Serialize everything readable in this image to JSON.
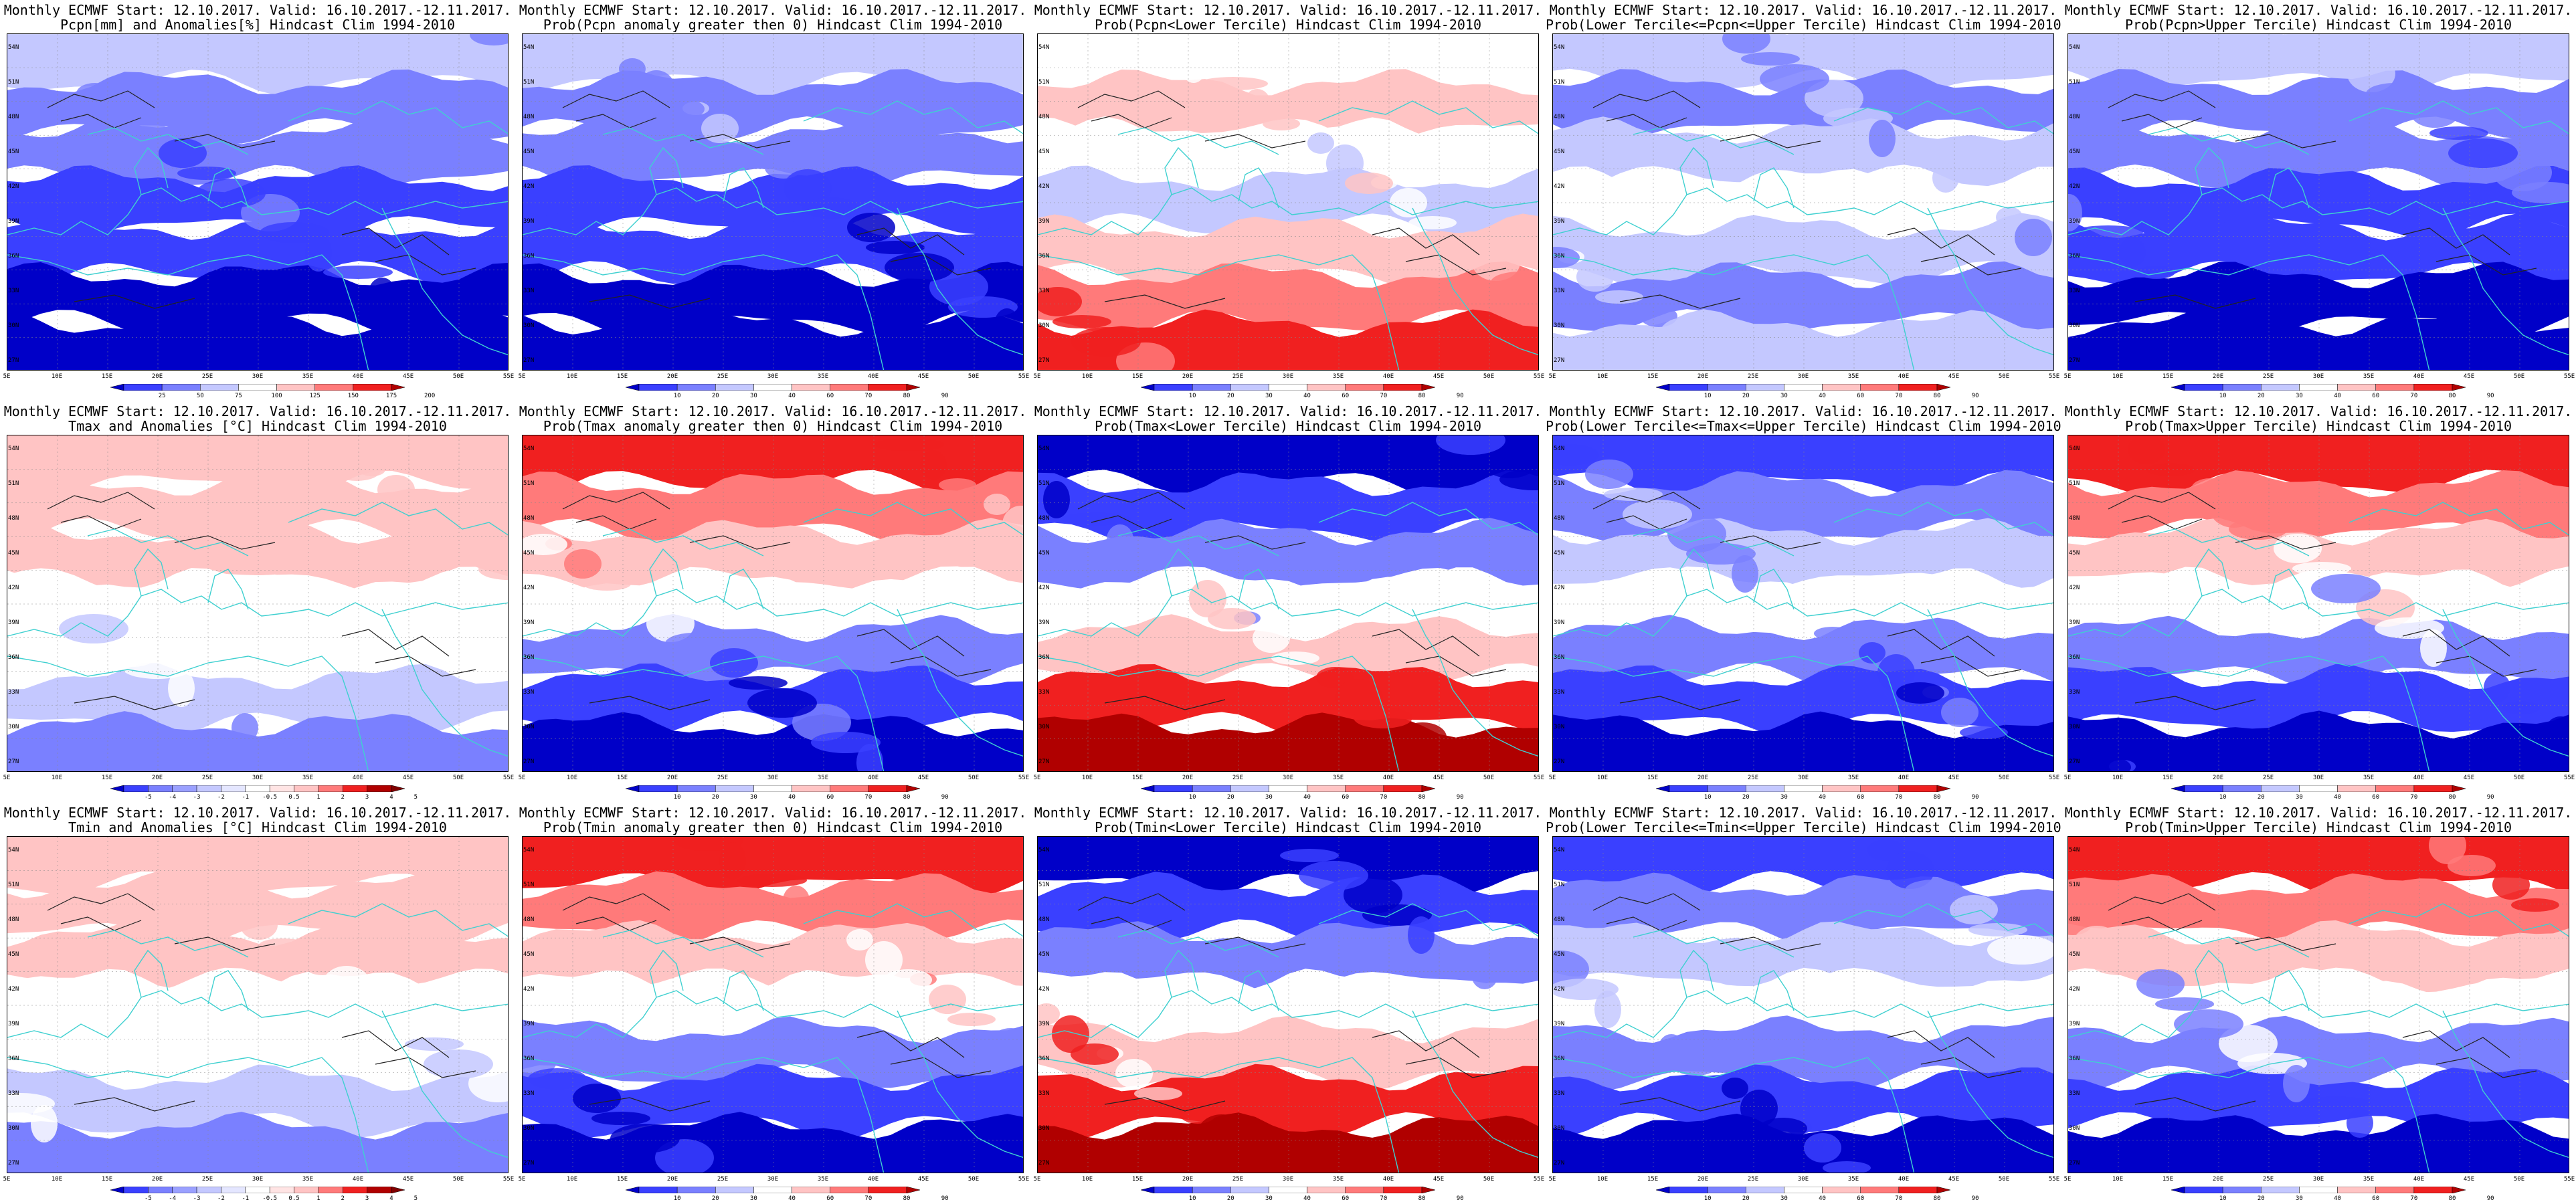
{
  "header_line": "Monthly ECMWF Start: 12.10.2017. Valid: 16.10.2017.-12.11.2017.",
  "colors": {
    "dark_blue": "#0000c8",
    "blue": "#3a40ff",
    "mid_blue": "#7a80ff",
    "light_blue": "#c4c8ff",
    "white": "#ffffff",
    "light_red": "#ffc4c4",
    "mid_red": "#ff7a7a",
    "red": "#f02020",
    "dark_red": "#b00000",
    "coast": "#3fd0d0",
    "contour": "#222222"
  },
  "lat_labels": [
    "54N",
    "51N",
    "48N",
    "45N",
    "42N",
    "39N",
    "36N",
    "33N",
    "30N",
    "27N"
  ],
  "lon_labels": [
    "5E",
    "10E",
    "15E",
    "20E",
    "25E",
    "30E",
    "35E",
    "40E",
    "45E",
    "50E",
    "55E"
  ],
  "colorbars": {
    "pcpn_anom": [
      "25",
      "50",
      "75",
      "100",
      "125",
      "150",
      "175",
      "200"
    ],
    "prob": [
      "10",
      "20",
      "30",
      "40",
      "60",
      "70",
      "80",
      "90"
    ],
    "temp_anom": [
      "-5",
      "-4",
      "-3",
      "-2",
      "-1",
      "-0.5",
      "0.5",
      "1",
      "2",
      "3",
      "4",
      "5"
    ]
  },
  "rows": [
    {
      "panels": [
        {
          "title": "Pcpn[mm] and Anomalies[%] Hindcast Clim 1994-2010",
          "cbar": "pcpn_anom",
          "palette": "blue_heavy"
        },
        {
          "title": "Prob(Pcpn anomaly greater then 0) Hindcast Clim 1994-2010",
          "cbar": "prob",
          "palette": "blue_heavy"
        },
        {
          "title": "Prob(Pcpn<Lower Tercile) Hindcast Clim 1994-2010",
          "cbar": "prob",
          "palette": "light_north_red_south"
        },
        {
          "title": "Prob(Lower Tercile<=Pcpn<=Upper Tercile) Hindcast Clim 1994-2010",
          "cbar": "prob",
          "palette": "mixed_blue"
        },
        {
          "title": "Prob(Pcpn>Upper Tercile) Hindcast Clim 1994-2010",
          "cbar": "prob",
          "palette": "blue_heavy"
        }
      ]
    },
    {
      "panels": [
        {
          "title": "Tmax and Anomalies [°C] Hindcast Clim 1994-2010",
          "cbar": "temp_anom",
          "palette": "red_north_white_mid_blue_south"
        },
        {
          "title": "Prob(Tmax anomaly greater then 0) Hindcast Clim 1994-2010",
          "cbar": "prob",
          "palette": "red_north_blue_south"
        },
        {
          "title": "Prob(Tmax<Lower Tercile) Hindcast Clim 1994-2010",
          "cbar": "prob",
          "palette": "blue_north_red_south"
        },
        {
          "title": "Prob(Lower Tercile<=Tmax<=Upper Tercile) Hindcast Clim 1994-2010",
          "cbar": "prob",
          "palette": "blue_mixed"
        },
        {
          "title": "Prob(Tmax>Upper Tercile) Hindcast Clim 1994-2010",
          "cbar": "prob",
          "palette": "red_north_blue_south"
        }
      ]
    },
    {
      "panels": [
        {
          "title": "Tmin and Anomalies [°C] Hindcast Clim 1994-2010",
          "cbar": "temp_anom",
          "palette": "red_north_white_mid_blue_south"
        },
        {
          "title": "Prob(Tmin anomaly greater then 0) Hindcast Clim 1994-2010",
          "cbar": "prob",
          "palette": "red_north_blue_south"
        },
        {
          "title": "Prob(Tmin<Lower Tercile) Hindcast Clim 1994-2010",
          "cbar": "prob",
          "palette": "blue_north_red_south"
        },
        {
          "title": "Prob(Lower Tercile<=Tmin<=Upper Tercile) Hindcast Clim 1994-2010",
          "cbar": "prob",
          "palette": "blue_mixed"
        },
        {
          "title": "Prob(Tmin>Upper Tercile) Hindcast Clim 1994-2010",
          "cbar": "prob",
          "palette": "red_north_blue_south"
        }
      ]
    }
  ]
}
